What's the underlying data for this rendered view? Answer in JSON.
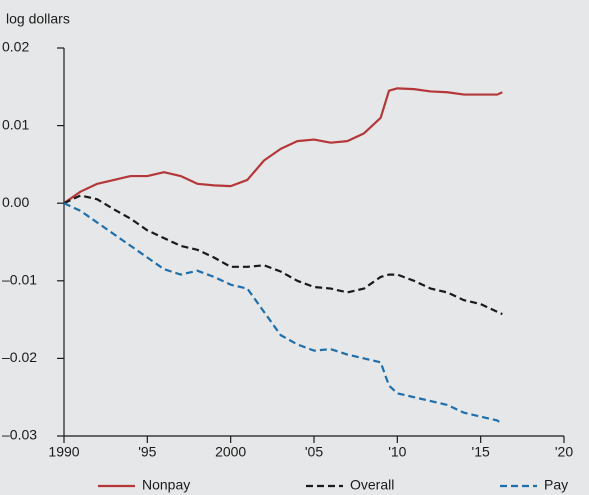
{
  "chart_data": {
    "type": "line",
    "y_label": "log dollars",
    "x": [
      1990,
      1991,
      1992,
      1993,
      1994,
      1995,
      1996,
      1997,
      1998,
      1999,
      2000,
      2001,
      2002,
      2003,
      2004,
      2005,
      2006,
      2007,
      2008,
      2009,
      2009.5,
      2010,
      2011,
      2012,
      2013,
      2014,
      2015,
      2016,
      2016.3
    ],
    "series": [
      {
        "name": "Nonpay",
        "color": "#b5373a",
        "dash": false,
        "values": [
          0,
          0.0015,
          0.0025,
          0.003,
          0.0035,
          0.0035,
          0.004,
          0.0035,
          0.0025,
          0.0023,
          0.0022,
          0.003,
          0.0055,
          0.007,
          0.008,
          0.0082,
          0.0078,
          0.008,
          0.009,
          0.011,
          0.0145,
          0.0148,
          0.0147,
          0.0144,
          0.0143,
          0.014,
          0.014,
          0.014,
          0.0143
        ]
      },
      {
        "name": "Overall",
        "color": "#1a1a1a",
        "dash": true,
        "values": [
          0,
          0.001,
          0.0005,
          -0.0008,
          -0.002,
          -0.0035,
          -0.0045,
          -0.0055,
          -0.006,
          -0.007,
          -0.0082,
          -0.0082,
          -0.008,
          -0.0088,
          -0.01,
          -0.0108,
          -0.011,
          -0.0115,
          -0.011,
          -0.0095,
          -0.0092,
          -0.0092,
          -0.01,
          -0.011,
          -0.0115,
          -0.0125,
          -0.013,
          -0.014,
          -0.0143
        ]
      },
      {
        "name": "Pay",
        "color": "#1f6fad",
        "dash": true,
        "values": [
          0,
          -0.001,
          -0.0025,
          -0.004,
          -0.0055,
          -0.007,
          -0.0085,
          -0.0092,
          -0.0087,
          -0.0095,
          -0.0105,
          -0.011,
          -0.014,
          -0.017,
          -0.0182,
          -0.019,
          -0.0188,
          -0.0195,
          -0.02,
          -0.0205,
          -0.0235,
          -0.0245,
          -0.025,
          -0.0255,
          -0.026,
          -0.027,
          -0.0275,
          -0.028,
          -0.0285
        ]
      }
    ],
    "xlim": [
      1990,
      2020
    ],
    "xticks": [
      1990,
      {
        "value": 1995,
        "label": "'95"
      },
      2000,
      {
        "value": 2005,
        "label": "'05"
      },
      {
        "value": 2010,
        "label": "'10"
      },
      {
        "value": 2015,
        "label": "'15"
      },
      {
        "value": 2020,
        "label": "'20"
      }
    ],
    "ylim": [
      -0.03,
      0.02
    ],
    "yticks": [
      {
        "value": -0.03,
        "label": "–0.03"
      },
      {
        "value": -0.02,
        "label": "–0.02"
      },
      {
        "value": -0.01,
        "label": "–0.01"
      },
      {
        "value": 0,
        "label": "0.00"
      },
      0.01,
      0.02
    ],
    "legend": "bottom"
  }
}
